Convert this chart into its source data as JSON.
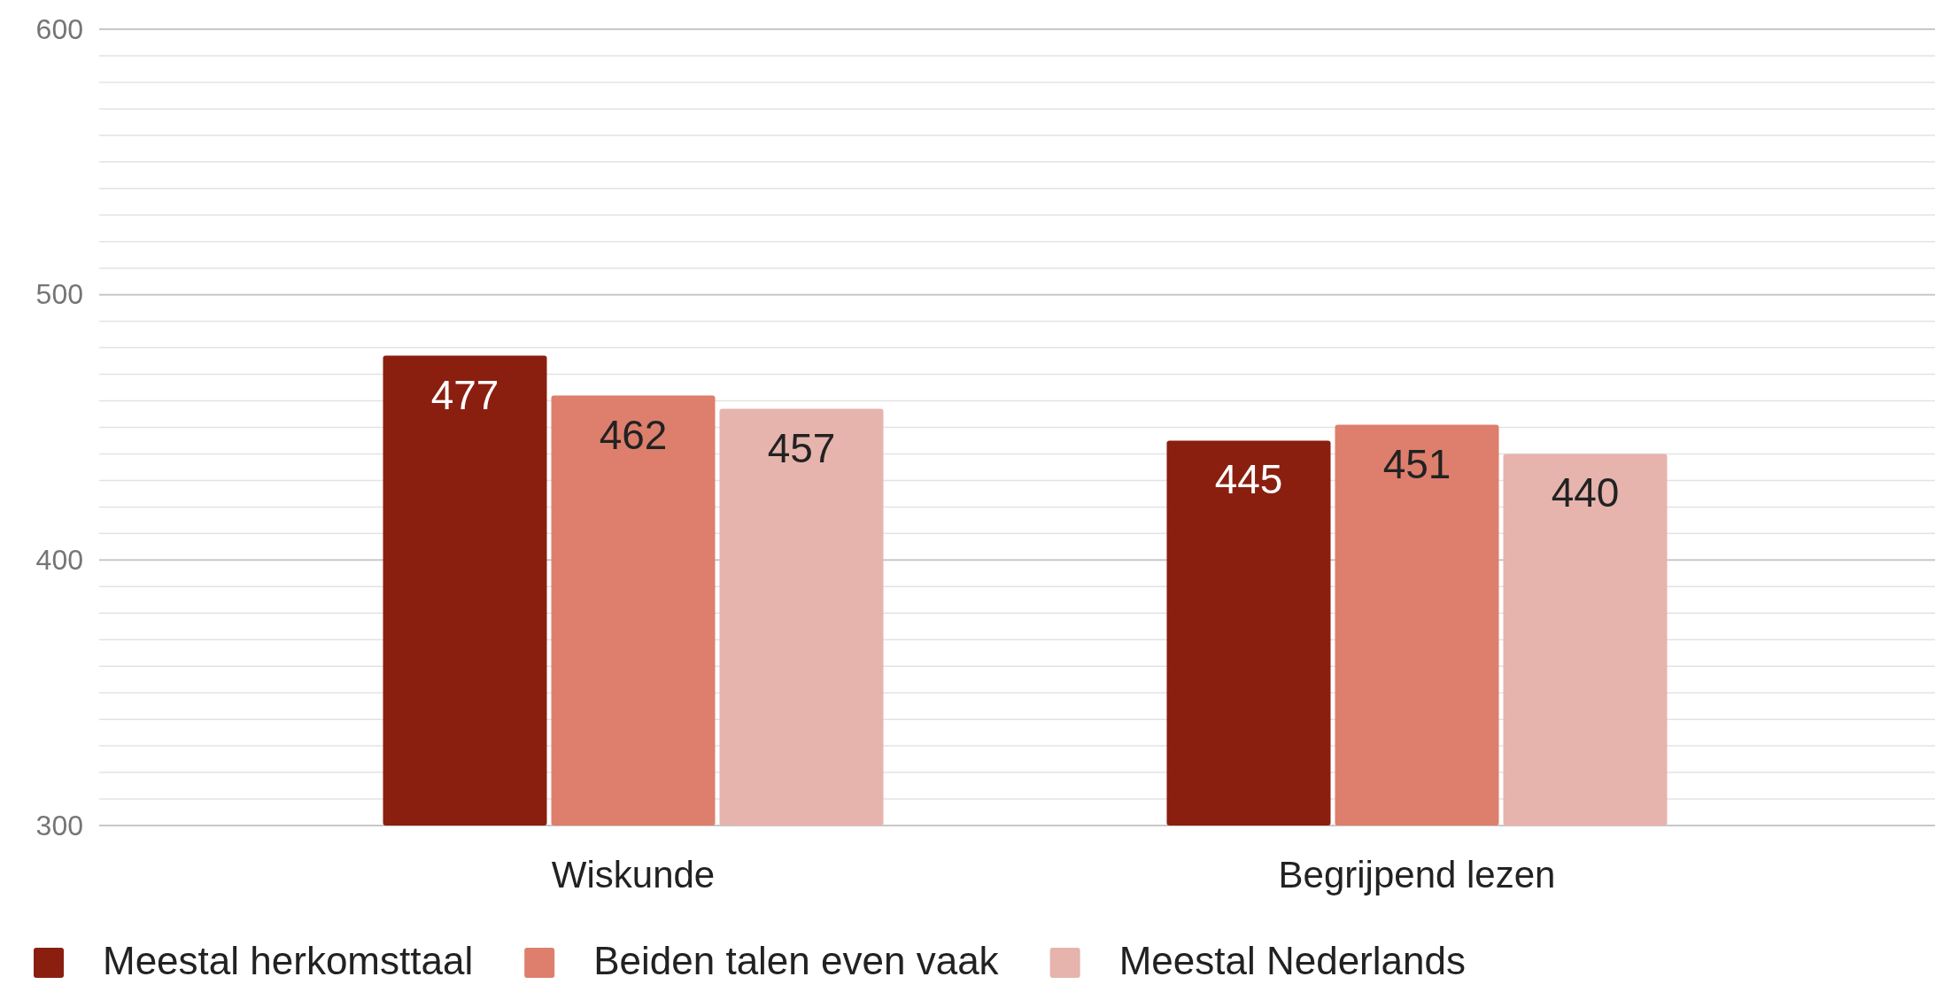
{
  "chart_data": {
    "type": "bar",
    "categories": [
      "Wiskunde",
      "Begrijpend lezen"
    ],
    "series": [
      {
        "name": "Meestal herkomsttaal",
        "color": "#8a1f10",
        "values": [
          477,
          445
        ]
      },
      {
        "name": "Beiden talen even vaak",
        "color": "#dd7f6c",
        "values": [
          462,
          451
        ]
      },
      {
        "name": "Meestal Nederlands",
        "color": "#e6b4ad",
        "values": [
          457,
          440
        ]
      }
    ],
    "ylim": [
      300,
      600
    ],
    "yticks": [
      300,
      {
        "value": 310,
        "label": null
      },
      {
        "value": 320,
        "label": null
      },
      {
        "value": 330,
        "label": null
      },
      {
        "value": 340,
        "label": null
      },
      {
        "value": 350,
        "label": null
      },
      {
        "value": 360,
        "label": null
      },
      {
        "value": 370,
        "label": null
      },
      {
        "value": 380,
        "label": null
      },
      {
        "value": 390,
        "label": null
      },
      400,
      {
        "value": 410,
        "label": null
      },
      {
        "value": 420,
        "label": null
      },
      {
        "value": 430,
        "label": null
      },
      {
        "value": 440,
        "label": null
      },
      {
        "value": 450,
        "label": null
      },
      {
        "value": 460,
        "label": null
      },
      {
        "value": 470,
        "label": null
      },
      {
        "value": 480,
        "label": null
      },
      {
        "value": 490,
        "label": null
      },
      500,
      {
        "value": 510,
        "label": null
      },
      {
        "value": 520,
        "label": null
      },
      {
        "value": 530,
        "label": null
      },
      {
        "value": 540,
        "label": null
      },
      {
        "value": 550,
        "label": null
      },
      {
        "value": 560,
        "label": null
      },
      {
        "value": 570,
        "label": null
      },
      {
        "value": 580,
        "label": null
      },
      {
        "value": 590,
        "label": null
      },
      600
    ],
    "grid": "y",
    "data_labels": true,
    "legend": "bottom"
  }
}
